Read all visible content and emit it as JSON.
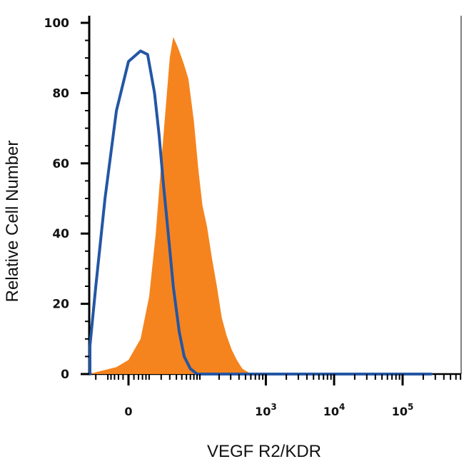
{
  "chart_data": {
    "type": "area",
    "title": "",
    "xlabel": "VEGF R2/KDR",
    "ylabel": "Relative Cell Number",
    "x_scale": "biexponential",
    "x_ticks": [
      {
        "value": 0,
        "base": "0",
        "exp": ""
      },
      {
        "value": 1000,
        "base": "10",
        "exp": "3"
      },
      {
        "value": 10000,
        "base": "10",
        "exp": "4"
      },
      {
        "value": 100000,
        "base": "10",
        "exp": "5"
      }
    ],
    "ylim": [
      0,
      100
    ],
    "y_ticks": [
      0,
      20,
      40,
      60,
      80,
      100
    ],
    "grid": false,
    "legend": "none",
    "series": [
      {
        "style": "filled",
        "color": "#F5841F",
        "points": [
          [
            -60,
            0
          ],
          [
            -20,
            0.5
          ],
          [
            -5,
            2
          ],
          [
            0,
            4
          ],
          [
            5,
            10
          ],
          [
            10,
            22
          ],
          [
            15,
            40
          ],
          [
            20,
            60
          ],
          [
            25,
            76
          ],
          [
            30,
            90
          ],
          [
            35,
            96
          ],
          [
            40,
            94
          ],
          [
            45,
            92
          ],
          [
            55,
            88
          ],
          [
            65,
            84
          ],
          [
            80,
            72
          ],
          [
            95,
            58
          ],
          [
            110,
            48
          ],
          [
            130,
            42
          ],
          [
            155,
            33
          ],
          [
            185,
            25
          ],
          [
            220,
            16
          ],
          [
            260,
            11
          ],
          [
            310,
            7
          ],
          [
            370,
            4
          ],
          [
            450,
            1.5
          ],
          [
            560,
            0.4
          ],
          [
            700,
            0
          ],
          [
            100000,
            0
          ],
          [
            260000,
            0
          ]
        ]
      },
      {
        "style": "outline",
        "color": "#2456A4",
        "points": [
          [
            -90,
            0
          ],
          [
            -55,
            0.5
          ],
          [
            -40,
            2
          ],
          [
            -30,
            8
          ],
          [
            -20,
            25
          ],
          [
            -12,
            50
          ],
          [
            -5,
            75
          ],
          [
            0,
            89
          ],
          [
            5,
            92
          ],
          [
            9,
            91
          ],
          [
            14,
            80
          ],
          [
            18,
            68
          ],
          [
            22,
            55
          ],
          [
            28,
            40
          ],
          [
            35,
            25
          ],
          [
            45,
            12
          ],
          [
            55,
            5
          ],
          [
            70,
            1.5
          ],
          [
            90,
            0
          ],
          [
            100000,
            0
          ],
          [
            260000,
            0
          ]
        ]
      }
    ]
  }
}
